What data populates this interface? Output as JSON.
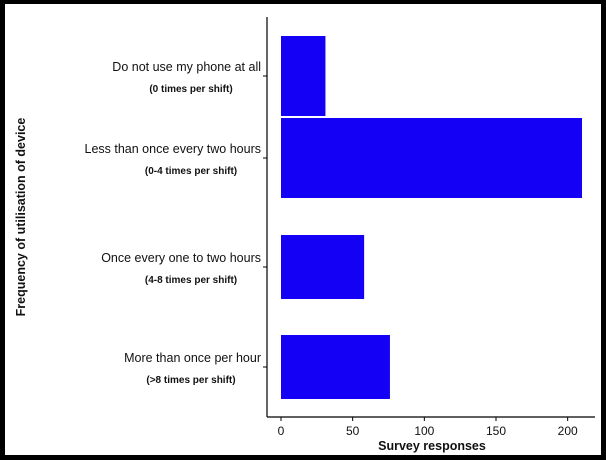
{
  "chart_data": {
    "type": "bar",
    "orientation": "horizontal",
    "categories": [
      {
        "label": "Do not use my phone at all",
        "sublabel": "(0 times per shift)"
      },
      {
        "label": "Less than once every two hours",
        "sublabel": "(0-4 times per shift)"
      },
      {
        "label": "Once every one to two hours",
        "sublabel": "(4-8 times per shift)"
      },
      {
        "label": "More than once per hour",
        "sublabel": "(>8 times per shift)"
      }
    ],
    "values": [
      31,
      210,
      58,
      76
    ],
    "xlabel": "Survey responses",
    "ylabel": "Frequency of utilisation of device",
    "xlim": [
      -10,
      222
    ],
    "xticks": [
      0,
      50,
      100,
      150,
      200
    ],
    "bar_color": "#1400f5",
    "grid": false,
    "legend": "none"
  }
}
